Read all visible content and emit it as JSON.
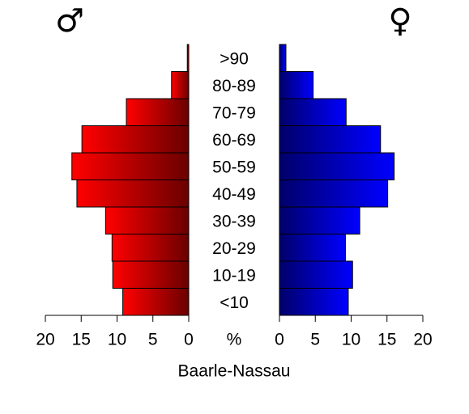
{
  "chart_data": {
    "type": "population_pyramid",
    "categories": [
      "<10",
      "10-19",
      "20-29",
      "30-39",
      "40-49",
      "50-59",
      "60-69",
      "70-79",
      "80-89",
      ">90"
    ],
    "series": [
      {
        "name": "♂",
        "color": "#ff0000",
        "values": [
          9.2,
          10.6,
          10.7,
          11.6,
          15.6,
          16.3,
          14.9,
          8.7,
          2.4,
          0.2
        ]
      },
      {
        "name": "♀",
        "color": "#0000ff",
        "values": [
          9.6,
          10.2,
          9.2,
          11.2,
          15.1,
          16.0,
          14.1,
          9.3,
          4.7,
          0.9
        ]
      }
    ],
    "xlim": [
      0,
      20
    ],
    "xticks": [
      0,
      5,
      10,
      15,
      20
    ],
    "xlabel": "%",
    "caption": "Baarle-Nassau"
  }
}
